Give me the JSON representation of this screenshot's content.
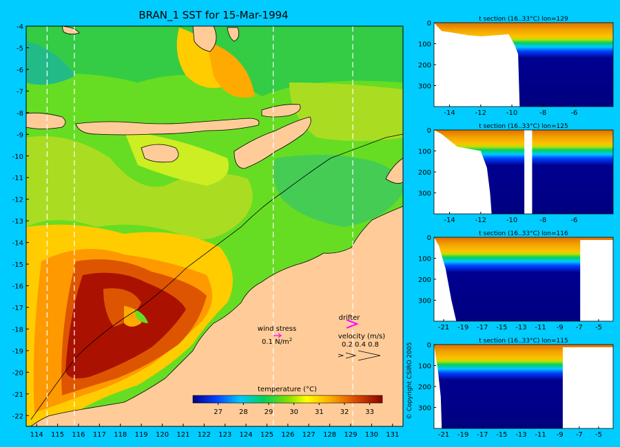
{
  "chart_data": [
    {
      "type": "heatmap",
      "title": "BRAN_1 SST for 15-Mar-1994",
      "xlim": [
        113.5,
        131.5
      ],
      "ylim": [
        -22.5,
        -4
      ],
      "x_ticks": [
        114,
        115,
        116,
        117,
        118,
        119,
        120,
        121,
        122,
        123,
        124,
        125,
        126,
        127,
        128,
        129,
        130,
        131
      ],
      "y_ticks": [
        -4,
        -5,
        -6,
        -7,
        -8,
        -9,
        -10,
        -11,
        -12,
        -13,
        -14,
        -15,
        -16,
        -17,
        -18,
        -19,
        -20,
        -21,
        -22
      ],
      "section_lines_lon": [
        114.5,
        115.8,
        125.3,
        129.1
      ],
      "legend": {
        "wind_stress_label": "wind stress",
        "wind_stress_value": "0.1 N/m",
        "wind_stress_exp": "2",
        "drifter_label": "drifter",
        "velocity_label": "velocity (m/s)",
        "velocity_values": "0.2 0.4 0.8"
      },
      "colorbar": {
        "label": "temperature (°C)",
        "range": [
          26,
          33.5
        ],
        "ticks": [
          27,
          28,
          29,
          30,
          31,
          32,
          33
        ]
      }
    },
    {
      "type": "heatmap",
      "title": "t section (16..33°C) lon=129",
      "xlim": [
        -15,
        -3.5
      ],
      "ylim": [
        400,
        0
      ],
      "x_ticks": [
        -14,
        -12,
        -10,
        -8,
        -6
      ],
      "y_ticks": [
        0,
        100,
        200,
        300
      ],
      "land_left": [
        [
          -15,
          0
        ],
        [
          -14.5,
          40
        ],
        [
          -14,
          45
        ],
        [
          -12.8,
          60
        ],
        [
          -12,
          65
        ],
        [
          -11,
          60
        ],
        [
          -10.2,
          55
        ],
        [
          -9.8,
          110
        ],
        [
          -9.6,
          150
        ],
        [
          -9.5,
          400
        ]
      ],
      "gap": null
    },
    {
      "type": "heatmap",
      "title": "t section (16..33°C) lon=125",
      "xlim": [
        -15,
        -3.5
      ],
      "ylim": [
        400,
        0
      ],
      "x_ticks": [
        -14,
        -12,
        -10,
        -8,
        -6
      ],
      "y_ticks": [
        0,
        100,
        200,
        300
      ],
      "land_left": [
        [
          -15,
          0
        ],
        [
          -14.5,
          20
        ],
        [
          -13.5,
          80
        ],
        [
          -12,
          100
        ],
        [
          -11.6,
          180
        ],
        [
          -11.4,
          300
        ],
        [
          -11.3,
          400
        ]
      ],
      "gap": [
        -9.2,
        -8.7
      ]
    },
    {
      "type": "heatmap",
      "title": "t section (16..33°C) lon=116",
      "xlim": [
        -22,
        -3.5
      ],
      "ylim": [
        400,
        0
      ],
      "x_ticks": [
        -21,
        -19,
        -17,
        -15,
        -13,
        -11,
        -9,
        -7,
        -5
      ],
      "y_ticks": [
        0,
        100,
        200,
        300
      ],
      "land_left": [
        [
          -22,
          0
        ],
        [
          -21.5,
          40
        ],
        [
          -20.8,
          150
        ],
        [
          -20.2,
          300
        ],
        [
          -19.7,
          400
        ]
      ],
      "land_right_from": -6.9
    },
    {
      "type": "heatmap",
      "title": "t section (16..33°C) lon=115",
      "xlim": [
        -22,
        -3.5
      ],
      "ylim": [
        400,
        0
      ],
      "x_ticks": [
        -21,
        -19,
        -17,
        -15,
        -13,
        -11,
        -9,
        -7,
        -5
      ],
      "y_ticks": [
        0,
        100,
        200,
        300
      ],
      "land_left": [
        [
          -22,
          0
        ],
        [
          -21.6,
          120
        ],
        [
          -21.3,
          250
        ],
        [
          -21.2,
          400
        ]
      ],
      "land_right_from": -8.7
    }
  ],
  "copyright": "© Copyright CSIRO 2005"
}
